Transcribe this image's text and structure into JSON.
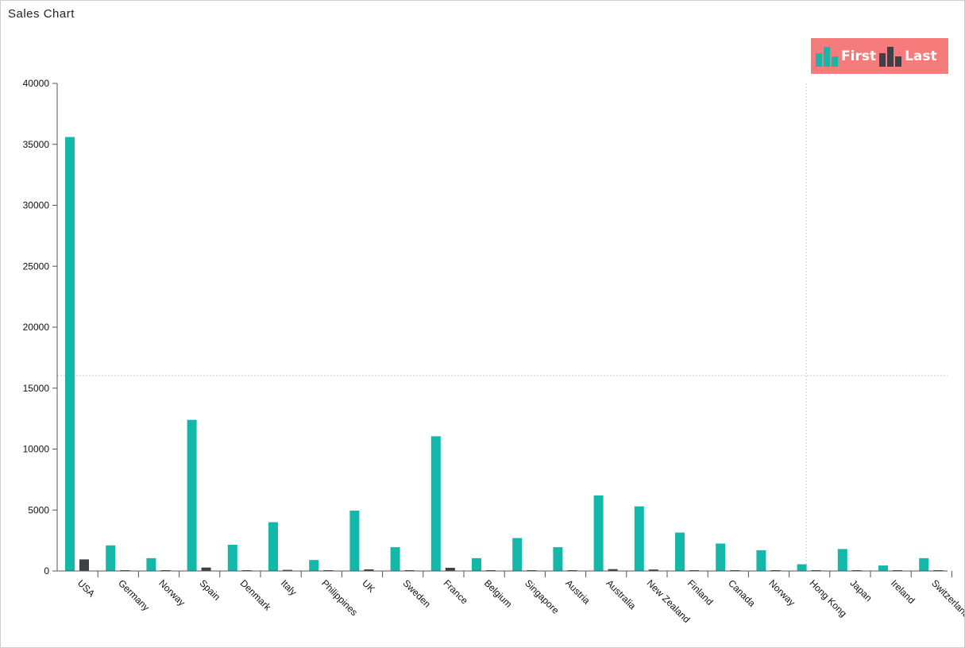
{
  "title": "Sales Chart",
  "legend": {
    "first_label": "First",
    "last_label": "Last"
  },
  "colors": {
    "first": "#12b8aa",
    "last": "#3b4146",
    "legend_bg": "#f67b7b",
    "axis": "#555555",
    "crosshair": "#cccccc"
  },
  "chart_data": {
    "type": "bar",
    "title": "Sales Chart",
    "xlabel": "",
    "ylabel": "",
    "ylim": [
      0,
      40000
    ],
    "yticks": [
      0,
      5000,
      10000,
      15000,
      20000,
      25000,
      30000,
      35000,
      40000
    ],
    "ytick_labels": [
      "0",
      "5000",
      "10000",
      "15000",
      "20000",
      "25000",
      "30000",
      "35000",
      "40000"
    ],
    "grid": false,
    "legend_position": "top-right",
    "categories": [
      "USA",
      "Germany",
      "Norway",
      "Spain",
      "Denmark",
      "Italy",
      "Philippines",
      "UK",
      "Sweden",
      "France",
      "Belgium",
      "Singapore",
      "Austria",
      "Australia",
      "New Zealand",
      "Finland",
      "Canada",
      "Norway",
      "Hong Kong",
      "Japan",
      "Ireland",
      "Switzerland"
    ],
    "series": [
      {
        "name": "First",
        "values": [
          35600,
          2100,
          1050,
          12400,
          2150,
          4000,
          900,
          4950,
          1950,
          11050,
          1050,
          2700,
          1950,
          6200,
          5300,
          3150,
          2250,
          1700,
          550,
          1800,
          450,
          1050
        ]
      },
      {
        "name": "Last",
        "values": [
          950,
          20,
          10,
          280,
          30,
          90,
          10,
          130,
          20,
          260,
          10,
          40,
          20,
          150,
          120,
          60,
          30,
          20,
          5,
          20,
          5,
          10
        ]
      }
    ]
  }
}
